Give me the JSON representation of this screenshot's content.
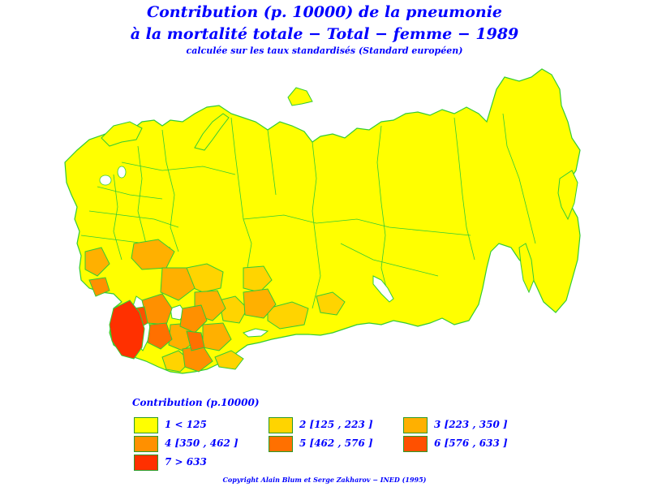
{
  "title": {
    "line1": "Contribution (p. 10000) de la pneumonie",
    "line2": "à la mortalité totale − Total − femme − 1989",
    "line3": "calculée sur les taux standardisés (Standard européen)"
  },
  "legend": {
    "title": "Contribution (p.10000)",
    "items": [
      {
        "label": "1 < 125",
        "color": "#ffff00"
      },
      {
        "label": "2 [125 , 223 ]",
        "color": "#ffd400"
      },
      {
        "label": "3 [223 , 350 ]",
        "color": "#ffb000"
      },
      {
        "label": "4 [350 , 462 ]",
        "color": "#ff9000"
      },
      {
        "label": "5 [462 , 576 ]",
        "color": "#ff7000"
      },
      {
        "label": "6 [576 , 633 ]",
        "color": "#ff5000"
      },
      {
        "label": "7 > 633",
        "color": "#ff3000"
      }
    ]
  },
  "map": {
    "border_color": "#33cc33",
    "water_color": "#ffffff"
  },
  "copyright": "Copyright Alain Blum et Serge Zakharov − INED (1995)"
}
